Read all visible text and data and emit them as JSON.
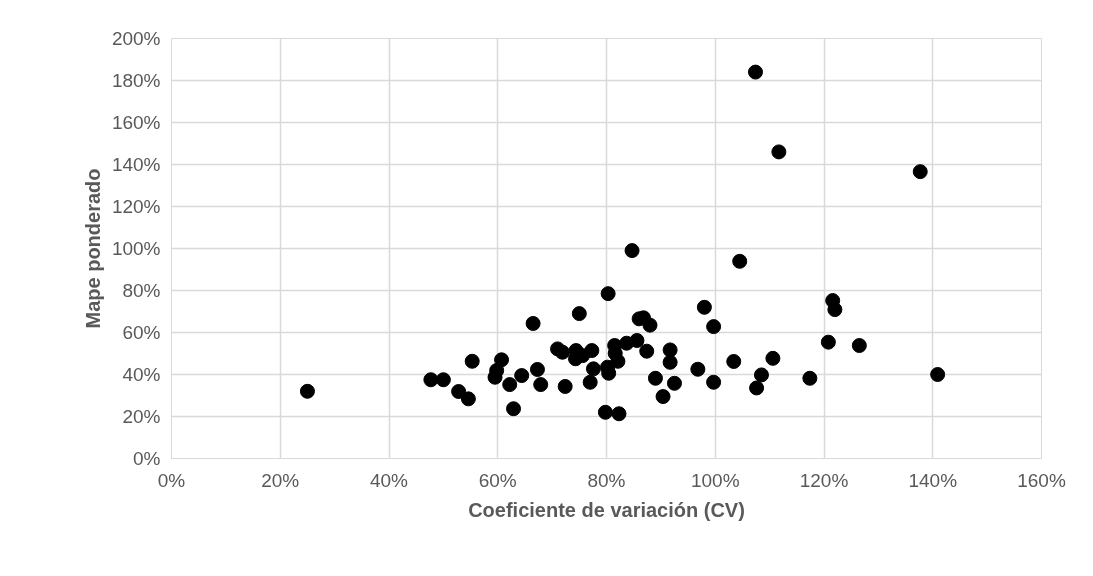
{
  "chart_data": {
    "type": "scatter",
    "xlabel": "Coeficiente de variación (CV)",
    "ylabel": "Mape ponderado",
    "xlim": [
      0,
      160
    ],
    "ylim": [
      0,
      200
    ],
    "xticks": [
      {
        "value": 0,
        "label": "0%"
      },
      {
        "value": 20,
        "label": "20%"
      },
      {
        "value": 40,
        "label": "40%"
      },
      {
        "value": 60,
        "label": "60%"
      },
      {
        "value": 80,
        "label": "80%"
      },
      {
        "value": 100,
        "label": "100%"
      },
      {
        "value": 120,
        "label": "120%"
      },
      {
        "value": 140,
        "label": "140%"
      },
      {
        "value": 160,
        "label": "160%"
      }
    ],
    "yticks": [
      {
        "value": 0,
        "label": "0%"
      },
      {
        "value": 20,
        "label": "20%"
      },
      {
        "value": 40,
        "label": "40%"
      },
      {
        "value": 60,
        "label": "60%"
      },
      {
        "value": 80,
        "label": "80%"
      },
      {
        "value": 100,
        "label": "100%"
      },
      {
        "value": 120,
        "label": "120%"
      },
      {
        "value": 140,
        "label": "140%"
      },
      {
        "value": 160,
        "label": "160%"
      },
      {
        "value": 180,
        "label": "180%"
      },
      {
        "value": 200,
        "label": "200%"
      }
    ],
    "grid": true,
    "marker": "circle",
    "series": [
      {
        "color": "#000000",
        "x": [
          25,
          47.7,
          50,
          52.8,
          54.6,
          55.3,
          59.5,
          59.8,
          60.7,
          62.2,
          62.9,
          64.4,
          67.3,
          67.9,
          71,
          71.9,
          72.4,
          74.4,
          74.3,
          75.6,
          77.3,
          77.6,
          77,
          80.2,
          80.4,
          79.8,
          82.3,
          81.5,
          81.6,
          82.1,
          83.7,
          85.6,
          87.4,
          89,
          90.4,
          91.7,
          91.7,
          92.5,
          96.8,
          99.7,
          103.4,
          108.5,
          107.6,
          110.6,
          117.4,
          120.8,
          126.5,
          140.9,
          98,
          99.7,
          104.5,
          121.6,
          122,
          137.7,
          107.4,
          111.7,
          84.7,
          80.3,
          75,
          66.5,
          86,
          86.8,
          88
        ],
        "values": [
          32,
          37.5,
          37.5,
          31.9,
          28.4,
          46.3,
          38.7,
          41.9,
          47,
          35.2,
          23.7,
          39.5,
          42.4,
          35.2,
          52.2,
          50.6,
          34.3,
          51.4,
          47.5,
          49,
          51.4,
          42.7,
          36.3,
          43.5,
          40.6,
          22,
          21.3,
          53.8,
          50.1,
          46.3,
          54.9,
          56.2,
          51.1,
          38.2,
          29.5,
          51.7,
          45.8,
          35.8,
          42.5,
          36.3,
          46.2,
          39.8,
          33.6,
          47.7,
          38.2,
          55.4,
          53.8,
          40,
          72,
          62.8,
          93.9,
          75.2,
          70.9,
          136.6,
          184,
          146,
          99,
          78.5,
          69,
          64.3,
          66.5,
          67,
          63.5
        ]
      }
    ]
  }
}
